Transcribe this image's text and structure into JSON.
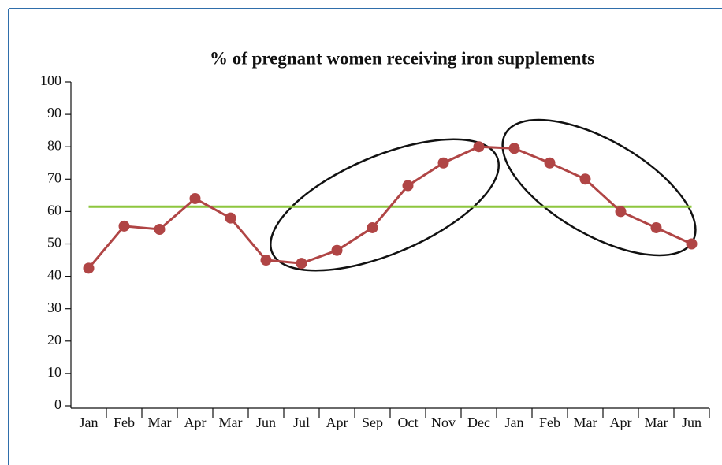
{
  "chart_data": {
    "type": "line",
    "title": "% of pregnant women receiving iron supplements",
    "categories": [
      "Jan",
      "Feb",
      "Mar",
      "Apr",
      "Mar",
      "Jun",
      "Jul",
      "Apr",
      "Sep",
      "Oct",
      "Nov",
      "Dec",
      "Jan",
      "Feb",
      "Mar",
      "Apr",
      "Mar",
      "Jun"
    ],
    "values": [
      42.5,
      55.5,
      54.5,
      64,
      58,
      45,
      44,
      48,
      55,
      68,
      75,
      80,
      79.5,
      75,
      70,
      60,
      55,
      50
    ],
    "color": "#b04545",
    "reference_line": 61.5,
    "reference_color": "#8dc63f",
    "ylim": [
      0,
      100
    ],
    "yticks": [
      0,
      10,
      20,
      30,
      40,
      50,
      60,
      70,
      80,
      90,
      100
    ]
  }
}
